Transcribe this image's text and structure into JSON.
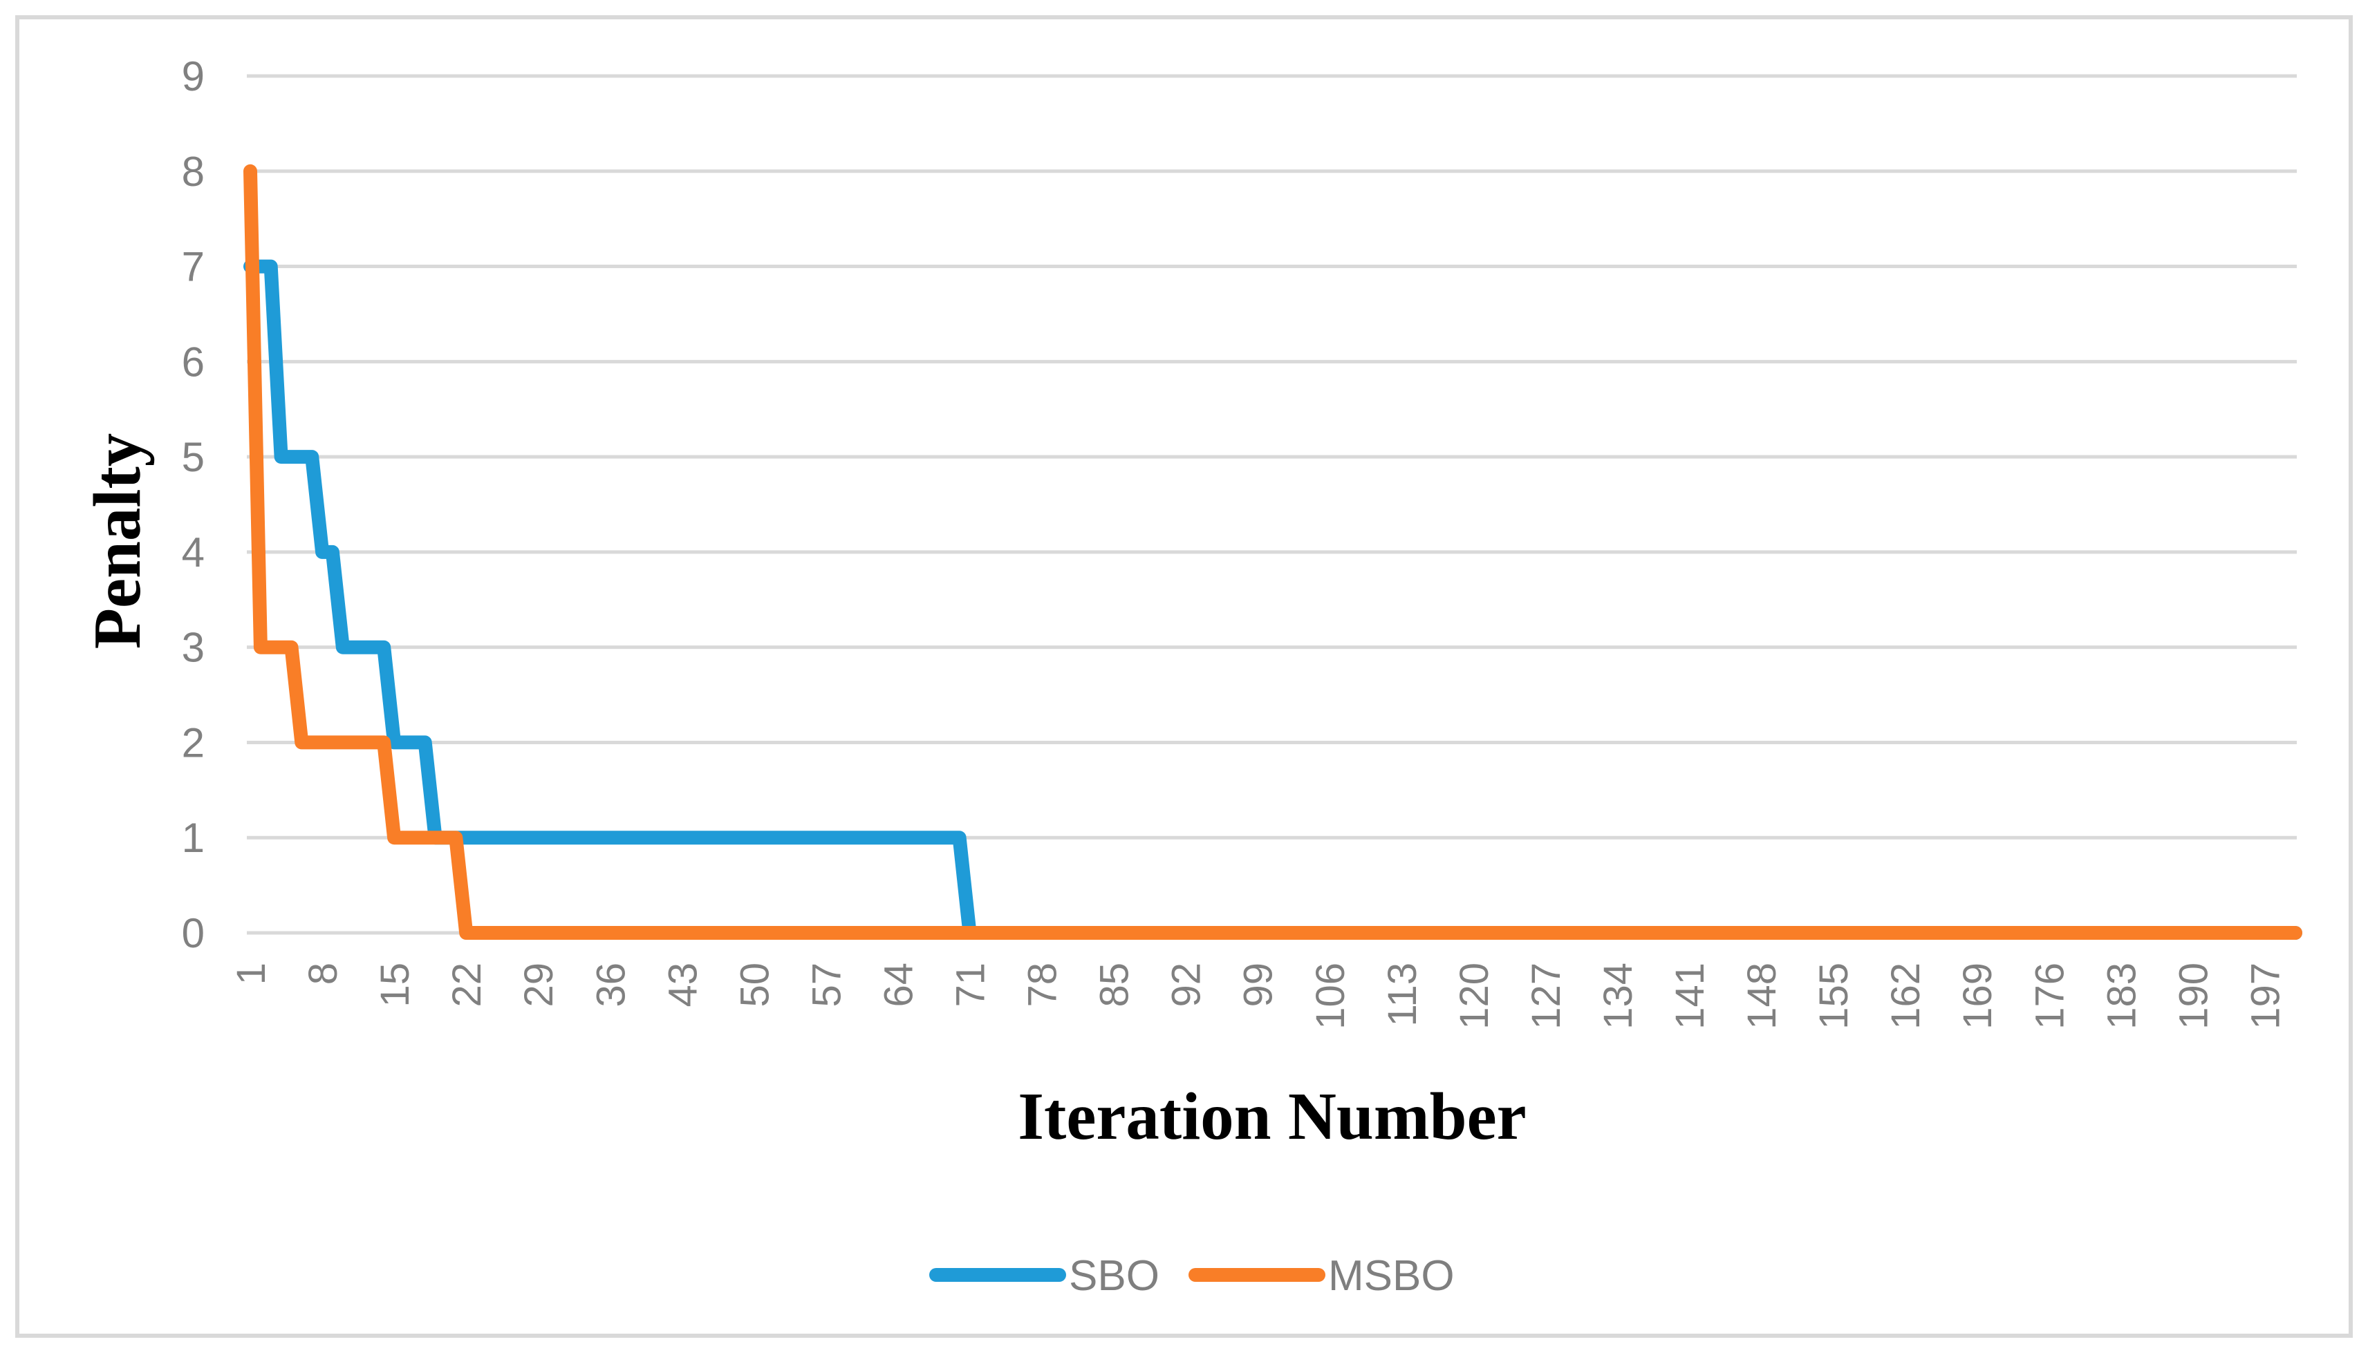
{
  "figure": {
    "background": "#FFFFFF",
    "frame_border_color": "#D9D9D9"
  },
  "colors": {
    "gridline": "#D9D9D9",
    "axis_line": "#D9D9D9",
    "tick_text": "#808080",
    "legend_text": "#7F7F7F",
    "title_text": "#000000"
  },
  "chart_data": {
    "type": "line",
    "subtype": "step",
    "title": "",
    "xlabel": "Iteration Number",
    "ylabel": "Penalty",
    "grid": "horizontal-only",
    "legend_position": "bottom-center",
    "x_axis": {
      "min": 1,
      "max": 200,
      "tick_step": 7,
      "ticks": [
        1,
        8,
        15,
        22,
        29,
        36,
        43,
        50,
        57,
        64,
        71,
        78,
        85,
        92,
        99,
        106,
        113,
        120,
        127,
        134,
        141,
        148,
        155,
        162,
        169,
        176,
        183,
        190,
        197
      ]
    },
    "y_axis": {
      "min": 0,
      "max": 9,
      "tick_step": 1,
      "ticks": [
        0,
        1,
        2,
        3,
        4,
        5,
        6,
        7,
        8,
        9
      ]
    },
    "series": [
      {
        "name": "SBO",
        "color": "#1F9BD7",
        "points_format": "[iteration, penalty] breakpoints of step curve",
        "points": [
          [
            1,
            7
          ],
          [
            3,
            7
          ],
          [
            4,
            5
          ],
          [
            7,
            5
          ],
          [
            8,
            4
          ],
          [
            9,
            4
          ],
          [
            10,
            3
          ],
          [
            14,
            3
          ],
          [
            15,
            2
          ],
          [
            18,
            2
          ],
          [
            19,
            1
          ],
          [
            70,
            1
          ],
          [
            71,
            0
          ],
          [
            200,
            0
          ]
        ]
      },
      {
        "name": "MSBO",
        "color": "#F97E27",
        "points_format": "[iteration, penalty] breakpoints of step curve",
        "points": [
          [
            1,
            8
          ],
          [
            2,
            3
          ],
          [
            5,
            3
          ],
          [
            6,
            2
          ],
          [
            14,
            2
          ],
          [
            15,
            1
          ],
          [
            21,
            1
          ],
          [
            22,
            0
          ],
          [
            200,
            0
          ]
        ]
      }
    ]
  }
}
